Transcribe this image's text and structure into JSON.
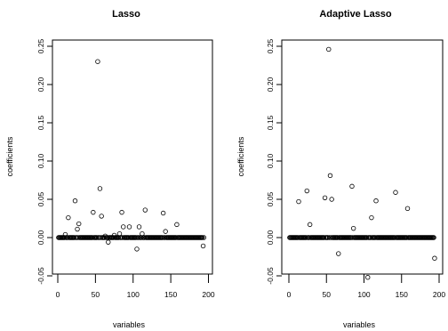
{
  "chart_data": [
    {
      "type": "scatter",
      "title": "Lasso",
      "xlabel": "variables",
      "ylabel": "coefficients",
      "xlim": [
        0,
        200
      ],
      "ylim": [
        -0.05,
        0.25
      ],
      "xticks": [
        0,
        50,
        100,
        150,
        200
      ],
      "yticks": [
        -0.05,
        0.0,
        0.05,
        0.1,
        0.15,
        0.2,
        0.25
      ],
      "ytick_labels": [
        "-0.05",
        "0.00",
        "0.05",
        "0.10",
        "0.15",
        "0.20",
        "0.25"
      ],
      "n_points": 194,
      "baseline_value": 0,
      "nonzero_points": [
        {
          "x": 10,
          "y": 0.004
        },
        {
          "x": 14,
          "y": 0.026
        },
        {
          "x": 23,
          "y": 0.048
        },
        {
          "x": 26,
          "y": 0.011
        },
        {
          "x": 28,
          "y": 0.018
        },
        {
          "x": 47,
          "y": 0.033
        },
        {
          "x": 53,
          "y": 0.23
        },
        {
          "x": 56,
          "y": 0.064
        },
        {
          "x": 58,
          "y": 0.028
        },
        {
          "x": 63,
          "y": 0.002
        },
        {
          "x": 67,
          "y": -0.006
        },
        {
          "x": 75,
          "y": 0.003
        },
        {
          "x": 82,
          "y": 0.005
        },
        {
          "x": 85,
          "y": 0.033
        },
        {
          "x": 87,
          "y": 0.014
        },
        {
          "x": 95,
          "y": 0.014
        },
        {
          "x": 105,
          "y": -0.015
        },
        {
          "x": 108,
          "y": 0.014
        },
        {
          "x": 112,
          "y": 0.005
        },
        {
          "x": 116,
          "y": 0.036
        },
        {
          "x": 140,
          "y": 0.032
        },
        {
          "x": 143,
          "y": 0.008
        },
        {
          "x": 158,
          "y": 0.017
        },
        {
          "x": 193,
          "y": -0.011
        }
      ]
    },
    {
      "type": "scatter",
      "title": "Adaptive Lasso",
      "xlabel": "variables",
      "ylabel": "coefficients",
      "xlim": [
        0,
        200
      ],
      "ylim": [
        -0.05,
        0.25
      ],
      "xticks": [
        0,
        50,
        100,
        150,
        200
      ],
      "yticks": [
        -0.05,
        0.0,
        0.05,
        0.1,
        0.15,
        0.2,
        0.25
      ],
      "ytick_labels": [
        "-0.05",
        "0.00",
        "0.05",
        "0.10",
        "0.15",
        "0.20",
        "0.25"
      ],
      "n_points": 194,
      "baseline_value": 0,
      "nonzero_points": [
        {
          "x": 13,
          "y": 0.047
        },
        {
          "x": 24,
          "y": 0.061
        },
        {
          "x": 28,
          "y": 0.017
        },
        {
          "x": 48,
          "y": 0.052
        },
        {
          "x": 53,
          "y": 0.246
        },
        {
          "x": 55,
          "y": 0.081
        },
        {
          "x": 57,
          "y": 0.05
        },
        {
          "x": 66,
          "y": -0.021
        },
        {
          "x": 84,
          "y": 0.067
        },
        {
          "x": 86,
          "y": 0.012
        },
        {
          "x": 105,
          "y": -0.052
        },
        {
          "x": 110,
          "y": 0.026
        },
        {
          "x": 116,
          "y": 0.048
        },
        {
          "x": 142,
          "y": 0.059
        },
        {
          "x": 158,
          "y": 0.038
        },
        {
          "x": 194,
          "y": -0.027
        }
      ]
    }
  ]
}
